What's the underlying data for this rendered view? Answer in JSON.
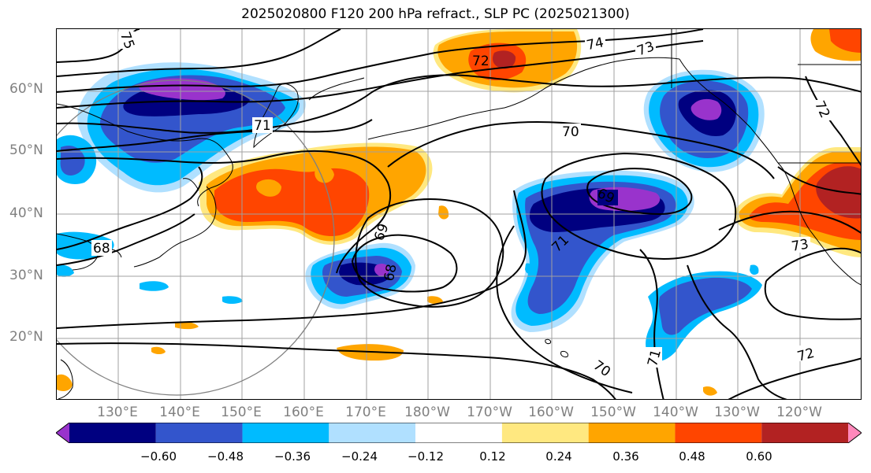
{
  "title": "2025020800 F120 200 hPa refract., SLP PC (2025021300)",
  "lat_labels": [
    "60°N",
    "50°N",
    "40°N",
    "30°N",
    "20°N"
  ],
  "lon_labels": [
    "130°E",
    "140°E",
    "150°E",
    "160°E",
    "170°E",
    "180°W",
    "170°W",
    "160°W",
    "150°W",
    "140°W",
    "130°W",
    "120°W"
  ],
  "colorbar": {
    "ticks": [
      "−0.60",
      "−0.48",
      "−0.36",
      "−0.24",
      "−0.12",
      "0.12",
      "0.24",
      "0.36",
      "0.48",
      "0.60"
    ],
    "colors": [
      "#9933cc",
      "#000080",
      "#3355cc",
      "#00bbff",
      "#b0e0ff",
      "#ffffff",
      "#ffe880",
      "#ffa500",
      "#ff4500",
      "#b22222",
      "#ff88bb"
    ]
  },
  "contour_labels": [
    "75",
    "74",
    "73",
    "72",
    "71",
    "70",
    "69",
    "68",
    "69",
    "68",
    "71",
    "70",
    "71",
    "72",
    "73",
    "72"
  ],
  "colors": {
    "contour": "#000000",
    "coast": "#000000",
    "grid": "#a0a0a0",
    "axis_label": "#808080",
    "range_ring": "#808080"
  }
}
